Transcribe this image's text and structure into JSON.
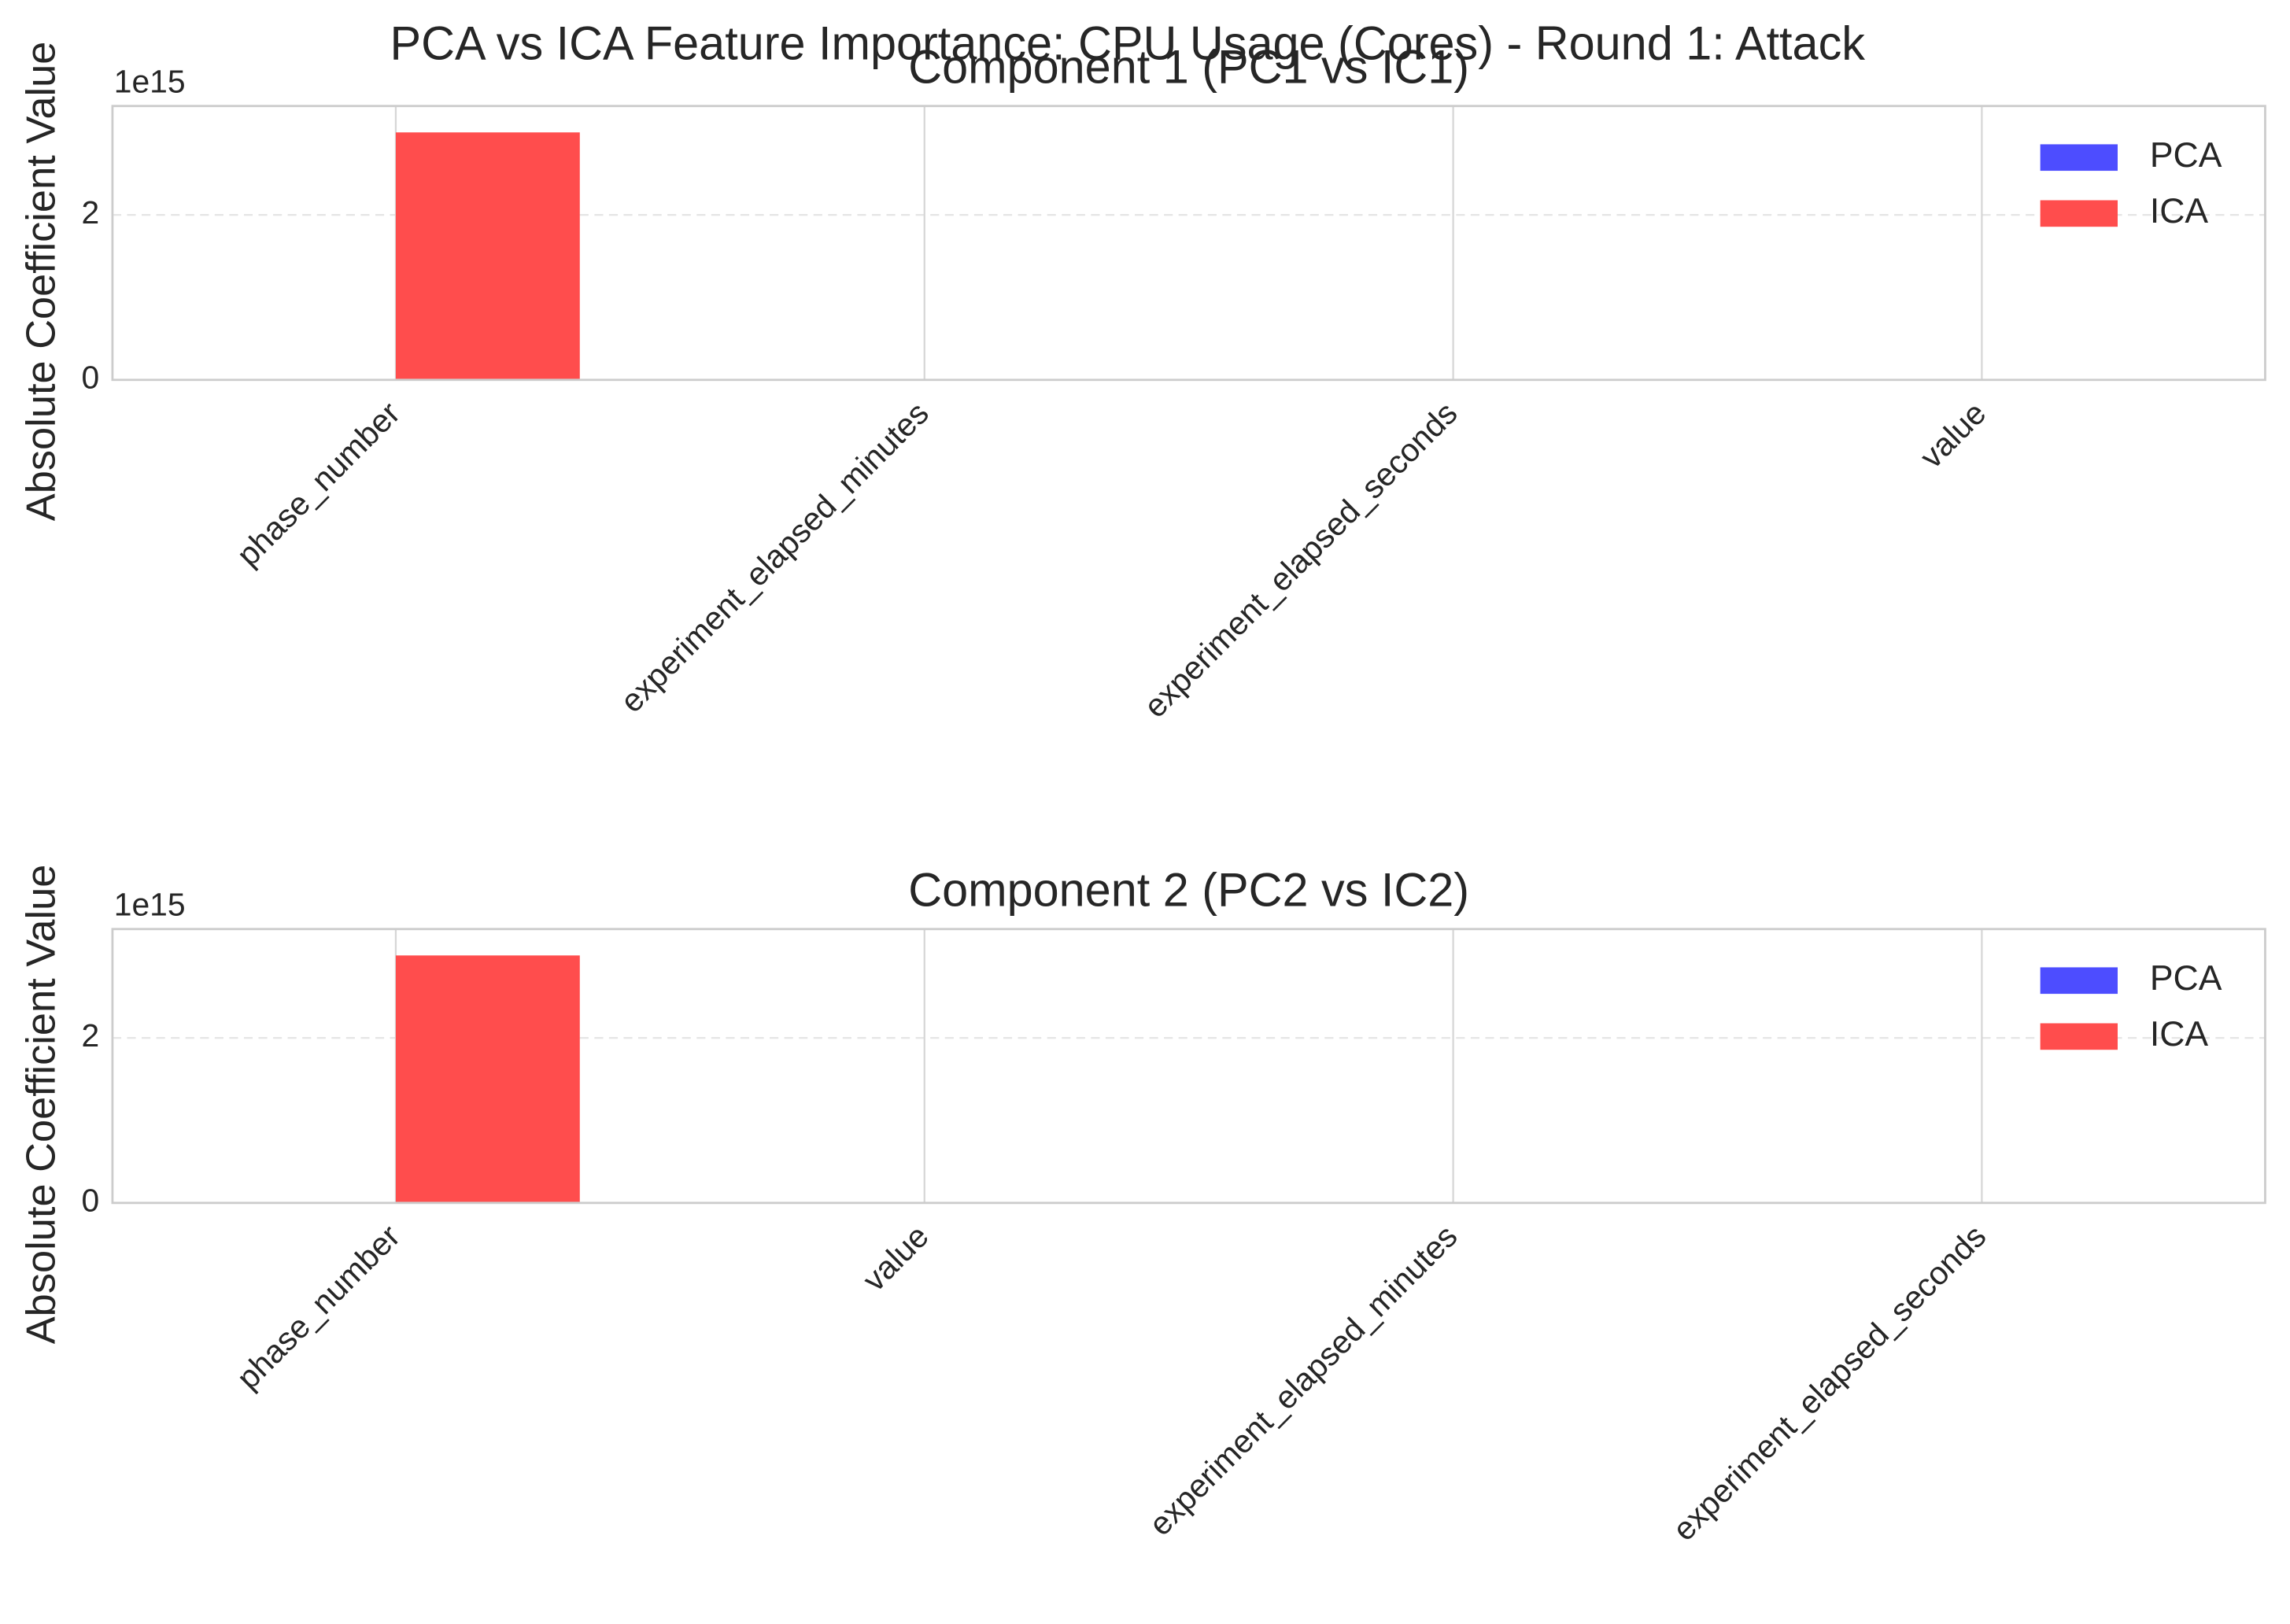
{
  "title": "PCA vs ICA Feature Importance: CPU Usage (Cores) - Round 1: Attack",
  "chart_data": [
    {
      "type": "bar",
      "title": "Component 1 (PC1 vs IC1)",
      "ylabel": "Absolute Coefficient Value",
      "y_offset_label": "1e15",
      "categories": [
        "phase_number",
        "experiment_elapsed_minutes",
        "experiment_elapsed_seconds",
        "value"
      ],
      "series": [
        {
          "name": "PCA",
          "color": "#4d4dff",
          "values": [
            0,
            0,
            0,
            0
          ]
        },
        {
          "name": "ICA",
          "color": "#ff4d4d",
          "values": [
            3.0,
            0,
            0,
            0
          ]
        }
      ],
      "ylim": [
        0,
        3.32
      ],
      "yticks": [
        0,
        2
      ],
      "grid": true,
      "legend": "upper right"
    },
    {
      "type": "bar",
      "title": "Component 2 (PC2 vs IC2)",
      "ylabel": "Absolute Coefficient Value",
      "y_offset_label": "1e15",
      "categories": [
        "phase_number",
        "value",
        "experiment_elapsed_minutes",
        "experiment_elapsed_seconds"
      ],
      "series": [
        {
          "name": "PCA",
          "color": "#4d4dff",
          "values": [
            0,
            0,
            0,
            0
          ]
        },
        {
          "name": "ICA",
          "color": "#ff4d4d",
          "values": [
            3.0,
            0,
            0,
            0
          ]
        }
      ],
      "ylim": [
        0,
        3.32
      ],
      "yticks": [
        0,
        2
      ],
      "grid": true,
      "legend": "upper right"
    }
  ]
}
